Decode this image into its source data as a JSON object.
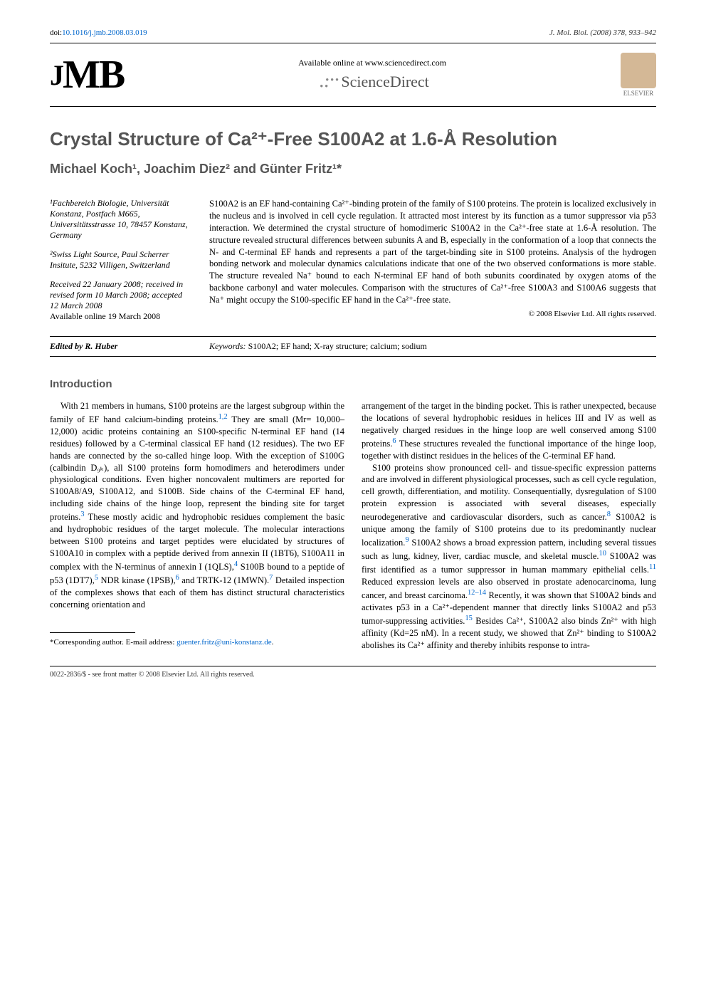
{
  "header": {
    "doi_prefix": "doi:",
    "doi": "10.1016/j.jmb.2008.03.019",
    "journal_ref": "J. Mol. Biol. (2008) 378, 933–942",
    "jmb_logo": "JMB",
    "available_online": "Available online at www.sciencedirect.com",
    "sciencedirect": "ScienceDirect",
    "elsevier": "ELSEVIER"
  },
  "title": "Crystal Structure of Ca²⁺-Free S100A2 at 1.6-Å Resolution",
  "authors": "Michael Koch¹, Joachim Diez² and Günter Fritz¹*",
  "affiliations": {
    "a1": "¹Fachbereich Biologie, Universität Konstanz, Postfach M665, Universitätsstrasse 10, 78457 Konstanz, Germany",
    "a2": "²Swiss Light Source, Paul Scherrer Insitute, 5232 Villigen, Switzerland"
  },
  "dates": {
    "received": "Received 22 January 2008; received in revised form 10 March 2008; accepted 12 March 2008",
    "available": "Available online 19 March 2008"
  },
  "abstract": "S100A2 is an EF hand-containing Ca²⁺-binding protein of the family of S100 proteins. The protein is localized exclusively in the nucleus and is involved in cell cycle regulation. It attracted most interest by its function as a tumor suppressor via p53 interaction. We determined the crystal structure of homodimeric S100A2 in the Ca²⁺-free state at 1.6-Å resolution. The structure revealed structural differences between subunits A and B, especially in the conformation of a loop that connects the N- and C-terminal EF hands and represents a part of the target-binding site in S100 proteins. Analysis of the hydrogen bonding network and molecular dynamics calculations indicate that one of the two observed conformations is more stable. The structure revealed Na⁺ bound to each N-terminal EF hand of both subunits coordinated by oxygen atoms of the backbone carbonyl and water molecules. Comparison with the structures of Ca²⁺-free S100A3 and S100A6 suggests that Na⁺ might occupy the S100-specific EF hand in the Ca²⁺-free state.",
  "copyright": "© 2008 Elsevier Ltd. All rights reserved.",
  "edited_by": "Edited by R. Huber",
  "keywords_label": "Keywords:",
  "keywords": " S100A2; EF hand; X-ray structure; calcium; sodium",
  "intro_heading": "Introduction",
  "body": {
    "col1_p1a": "With 21 members in humans, S100 proteins are the largest subgroup within the family of EF hand calcium-binding proteins.",
    "ref1": "1,2",
    "col1_p1b": " They are small (Mr= 10,000–12,000) acidic proteins containing an S100-specific N-terminal EF hand (14 residues) followed by a C-terminal classical EF hand (12 residues). The two EF hands are connected by the so-called hinge loop. With the exception of S100G (calbindin D₉ₖ), all S100 proteins form homodimers and heterodimers under physiological conditions. Even higher noncovalent multimers are reported for S100A8/A9, S100A12, and S100B. Side chains of the C-terminal EF hand, including side chains of the hinge loop, represent the binding site for target proteins.",
    "ref3": "3",
    "col1_p1c": " These mostly acidic and hydrophobic residues complement the basic and hydrophobic residues of the target molecule. The molecular interactions between S100 proteins and target peptides were elucidated by structures of S100A10 in complex with a peptide derived from annexin II (1BT6), S100A11 in complex with the N-terminus of annexin I (1QLS),",
    "ref4": "4",
    "col1_p1d": " S100B bound to a peptide of p53 (1DT7),",
    "ref5": "5",
    "col1_p1e": " NDR kinase (1PSB),",
    "ref6": "6",
    "col1_p1f": " and TRTK-12 (1MWN).",
    "ref7": "7",
    "col1_p1g": " Detailed inspection of the complexes shows that each of them has distinct structural characteristics concerning orientation and",
    "col2_p1a": "arrangement of the target in the binding pocket. This is rather unexpected, because the locations of several hydrophobic residues in helices III and IV as well as negatively charged residues in the hinge loop are well conserved among S100 proteins.",
    "ref6b": "6",
    "col2_p1b": " These structures revealed the functional importance of the hinge loop, together with distinct residues in the helices of the C-terminal EF hand.",
    "col2_p2a": "S100 proteins show pronounced cell- and tissue-specific expression patterns and are involved in different physiological processes, such as cell cycle regulation, cell growth, differentiation, and motility. Consequentially, dysregulation of S100 protein expression is associated with several diseases, especially neurodegenerative and cardiovascular disorders, such as cancer.",
    "ref8": "8",
    "col2_p2b": " S100A2 is unique among the family of S100 proteins due to its predominantly nuclear localization.",
    "ref9": "9",
    "col2_p2c": " S100A2 shows a broad expression pattern, including several tissues such as lung, kidney, liver, cardiac muscle, and skeletal muscle.",
    "ref10": "10",
    "col2_p2d": " S100A2 was first identified as a tumor suppressor in human mammary epithelial cells.",
    "ref11": "11",
    "col2_p2e": " Reduced expression levels are also observed in prostate adenocarcinoma, lung cancer, and breast carcinoma.",
    "ref12": "12–14",
    "col2_p2f": " Recently, it was shown that S100A2 binds and activates p53 in a Ca²⁺-dependent manner that directly links S100A2 and p53 tumor-suppressing activities.",
    "ref15": "15",
    "col2_p2g": " Besides Ca²⁺, S100A2 also binds Zn²⁺ with high affinity (Kd=25 nM). In a recent study, we showed that Zn²⁺ binding to S100A2 abolishes its Ca²⁺ affinity and thereby inhibits response to intra-"
  },
  "footnote": {
    "label": "*Corresponding author.",
    "text": " E-mail address: ",
    "email": "guenter.fritz@uni-konstanz.de",
    "period": "."
  },
  "footer": "0022-2836/$ - see front matter © 2008 Elsevier Ltd. All rights reserved."
}
